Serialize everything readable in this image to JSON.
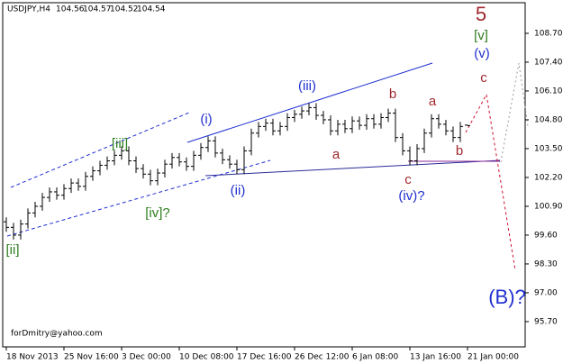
{
  "chart_data": {
    "type": "ohlc",
    "symbol": "USDJPY,H4",
    "header_values": [
      104.56,
      104.57,
      104.52,
      104.54
    ],
    "watermark": "forDmitry@yahoo.com",
    "color": "#000000",
    "open": [
      100.2,
      99.95,
      99.6,
      100.1,
      100.6,
      100.9,
      101.3,
      101.55,
      101.4,
      101.7,
      101.95,
      101.8,
      102.25,
      102.5,
      102.75,
      102.95,
      103.2,
      103.4,
      102.95,
      102.6,
      102.35,
      102.05,
      102.4,
      102.8,
      103.1,
      102.9,
      102.7,
      103.2,
      103.55,
      103.85,
      103.3,
      103.0,
      102.8,
      102.55,
      103.4,
      104.2,
      104.5,
      104.65,
      104.3,
      104.5,
      104.9,
      105.05,
      105.2,
      105.35,
      105.0,
      104.8,
      104.3,
      104.6,
      104.4,
      104.75,
      104.55,
      104.85,
      104.6,
      104.9,
      105.1,
      104.0,
      103.4,
      102.95,
      103.5,
      104.2,
      104.85,
      104.6,
      104.3,
      104.0,
      104.56
    ],
    "high": [
      100.4,
      100.15,
      100.3,
      100.8,
      101.1,
      101.5,
      101.75,
      101.75,
      101.9,
      102.15,
      102.15,
      102.45,
      102.7,
      102.95,
      103.15,
      103.4,
      103.6,
      103.6,
      103.15,
      102.8,
      102.55,
      102.6,
      103.0,
      103.3,
      103.3,
      103.1,
      103.4,
      103.75,
      104.05,
      104.05,
      103.5,
      103.2,
      103.0,
      103.6,
      104.4,
      104.7,
      104.85,
      104.85,
      104.7,
      105.1,
      105.25,
      105.4,
      105.55,
      105.55,
      105.2,
      105.0,
      104.8,
      104.8,
      104.95,
      104.95,
      105.05,
      105.05,
      105.1,
      105.3,
      105.3,
      104.2,
      103.6,
      103.7,
      104.4,
      105.05,
      105.05,
      104.8,
      104.5,
      104.7,
      104.57
    ],
    "low": [
      99.75,
      99.4,
      99.4,
      99.9,
      100.4,
      100.7,
      101.1,
      101.2,
      101.2,
      101.5,
      101.6,
      101.6,
      102.05,
      102.3,
      102.55,
      102.75,
      103.0,
      102.75,
      102.4,
      102.15,
      101.85,
      101.85,
      102.2,
      102.6,
      102.7,
      102.5,
      102.5,
      103.0,
      103.35,
      103.1,
      102.8,
      102.6,
      102.35,
      102.35,
      103.2,
      104.0,
      104.3,
      104.1,
      104.1,
      104.3,
      104.7,
      104.85,
      105.0,
      104.8,
      104.6,
      104.1,
      104.1,
      104.2,
      104.2,
      104.35,
      104.35,
      104.4,
      104.4,
      104.7,
      103.8,
      103.2,
      102.75,
      102.75,
      103.3,
      104.0,
      104.4,
      104.1,
      103.8,
      103.8,
      104.52
    ],
    "close": [
      99.95,
      99.6,
      100.1,
      100.6,
      100.9,
      101.3,
      101.55,
      101.4,
      101.7,
      101.95,
      101.8,
      102.25,
      102.5,
      102.75,
      102.95,
      103.2,
      103.4,
      102.95,
      102.6,
      102.35,
      102.05,
      102.4,
      102.8,
      103.1,
      102.9,
      102.7,
      103.2,
      103.55,
      103.85,
      103.3,
      103.0,
      102.8,
      102.55,
      103.4,
      104.2,
      104.5,
      104.65,
      104.3,
      104.5,
      104.9,
      105.05,
      105.2,
      105.35,
      105.0,
      104.8,
      104.3,
      104.6,
      104.4,
      104.75,
      104.55,
      104.85,
      104.6,
      104.9,
      105.1,
      104.0,
      103.4,
      102.95,
      103.5,
      104.2,
      104.85,
      104.6,
      104.3,
      104.0,
      104.5,
      104.54
    ],
    "xlim": [
      -0.5,
      72
    ],
    "xticks": [
      {
        "value": 0,
        "label": "18 Nov 2013"
      },
      {
        "value": 8,
        "label": "25 Nov 16:00"
      },
      {
        "value": 16,
        "label": "3 Dec 00:00"
      },
      {
        "value": 24,
        "label": "10 Dec 08:00"
      },
      {
        "value": 32,
        "label": "17 Dec 16:00"
      },
      {
        "value": 40,
        "label": "26 Dec 12:00"
      },
      {
        "value": 48,
        "label": "6 Jan 08:00"
      },
      {
        "value": 56,
        "label": "13 Jan 16:00"
      },
      {
        "value": 64,
        "label": "21 Jan 00:00"
      }
    ],
    "ylim": [
      94.56,
      110.08
    ],
    "yticks": [
      {
        "value": 108.7,
        "label": "108.70"
      },
      {
        "value": 107.4,
        "label": "107.40"
      },
      {
        "value": 106.1,
        "label": "106.10"
      },
      {
        "value": 104.8,
        "label": "104.80"
      },
      {
        "value": 103.5,
        "label": "103.50"
      },
      {
        "value": 102.2,
        "label": "102.20"
      },
      {
        "value": 100.9,
        "label": "100.90"
      },
      {
        "value": 99.6,
        "label": "99.60"
      },
      {
        "value": 98.3,
        "label": "98.30"
      },
      {
        "value": 97.0,
        "label": "97.00"
      },
      {
        "value": 95.7,
        "label": "95.70"
      }
    ],
    "annotations": [
      {
        "text": "5",
        "color": "#a0282d"
      },
      {
        "text": "[v]",
        "color": "#2e7d1f"
      },
      {
        "text": "(v)",
        "color": "#1f2fd0"
      },
      {
        "text": "c",
        "color": "#a0282d"
      },
      {
        "text": "[iii]",
        "color": "#2e7d1f"
      },
      {
        "text": "[iv]?",
        "color": "#2e7d1f"
      },
      {
        "text": "[ii]",
        "color": "#2e7d1f"
      },
      {
        "text": "(i)",
        "color": "#1f2fd0"
      },
      {
        "text": "(ii)",
        "color": "#1f2fd0"
      },
      {
        "text": "(iii)",
        "color": "#1f2fd0"
      },
      {
        "text": "(iv)?",
        "color": "#1f2fd0"
      },
      {
        "text": "(B)?",
        "color": "#1f2fd0"
      },
      {
        "text": "b",
        "color": "#a0282d"
      },
      {
        "text": "a",
        "color": "#a0282d"
      },
      {
        "text": "a",
        "color": "#a0282d"
      },
      {
        "text": "c",
        "color": "#a0282d"
      },
      {
        "text": "b",
        "color": "#a0282d"
      }
    ]
  }
}
